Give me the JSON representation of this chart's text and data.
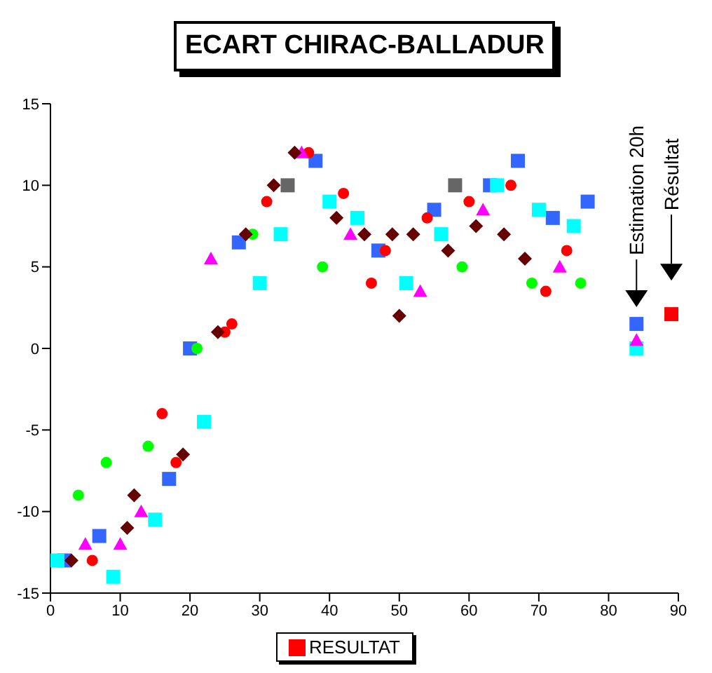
{
  "chart_data": {
    "type": "scatter",
    "title": "ECART CHIRAC-BALLADUR",
    "xlim": [
      0,
      90
    ],
    "xticks": [
      0,
      10,
      20,
      30,
      40,
      50,
      60,
      70,
      80,
      90
    ],
    "ylim": [
      -15,
      15
    ],
    "yticks": [
      -15,
      -10,
      -5,
      0,
      5,
      10,
      15
    ],
    "grid": false,
    "legend": "bottom",
    "annotations": [
      "Estimation 20h",
      "Résultat"
    ],
    "series": [
      {
        "color": "#3366ff",
        "marker": "square",
        "x": [
          2,
          7,
          17,
          20,
          27,
          38,
          47,
          55,
          63,
          67,
          72,
          77,
          84
        ],
        "values": [
          -13,
          -11.5,
          -8,
          0,
          6.5,
          11.5,
          6,
          8.5,
          10,
          11.5,
          8,
          9,
          1.5
        ]
      },
      {
        "color": "#00ffff",
        "marker": "square",
        "x": [
          1,
          9,
          15,
          22,
          30,
          33,
          40,
          44,
          51,
          56,
          64,
          70,
          75,
          84
        ],
        "values": [
          -13,
          -14,
          -10.5,
          -4.5,
          4,
          7,
          9,
          8,
          4,
          7,
          10,
          8.5,
          7.5,
          0
        ]
      },
      {
        "color": "#ff0000",
        "marker": "circle",
        "x": [
          6,
          16,
          18,
          25,
          26,
          31,
          37,
          42,
          46,
          48,
          54,
          60,
          66,
          71,
          74
        ],
        "values": [
          -13,
          -4,
          -7,
          1,
          1.5,
          9,
          12,
          9.5,
          4,
          6,
          8,
          9,
          10,
          3.5,
          6
        ]
      },
      {
        "color": "#ff00ff",
        "marker": "triangle",
        "x": [
          5,
          10,
          13,
          23,
          36,
          43,
          53,
          62,
          73,
          84
        ],
        "values": [
          -12,
          -12,
          -10,
          5.5,
          12,
          7,
          3.5,
          8.5,
          5,
          0.5
        ]
      },
      {
        "color": "#00ff00",
        "marker": "circle",
        "x": [
          4,
          8,
          14,
          21,
          29,
          39,
          59,
          69,
          76
        ],
        "values": [
          -9,
          -7,
          -6,
          0,
          7,
          5,
          5,
          4,
          4
        ]
      },
      {
        "color": "#660000",
        "marker": "diamond",
        "x": [
          3,
          11,
          12,
          19,
          24,
          28,
          32,
          35,
          41,
          45,
          49,
          50,
          52,
          57,
          61,
          65,
          68
        ],
        "values": [
          -13,
          -11,
          -9,
          -6.5,
          1,
          7,
          10,
          12,
          8,
          7,
          7,
          2,
          7,
          6,
          7.5,
          7,
          5.5
        ]
      },
      {
        "color": "#666666",
        "marker": "square",
        "x": [
          34,
          58
        ],
        "values": [
          10,
          10
        ]
      },
      {
        "name": "RESULTAT",
        "color": "#ff0000",
        "marker": "square",
        "x": [
          89
        ],
        "values": [
          2.1
        ]
      }
    ]
  }
}
